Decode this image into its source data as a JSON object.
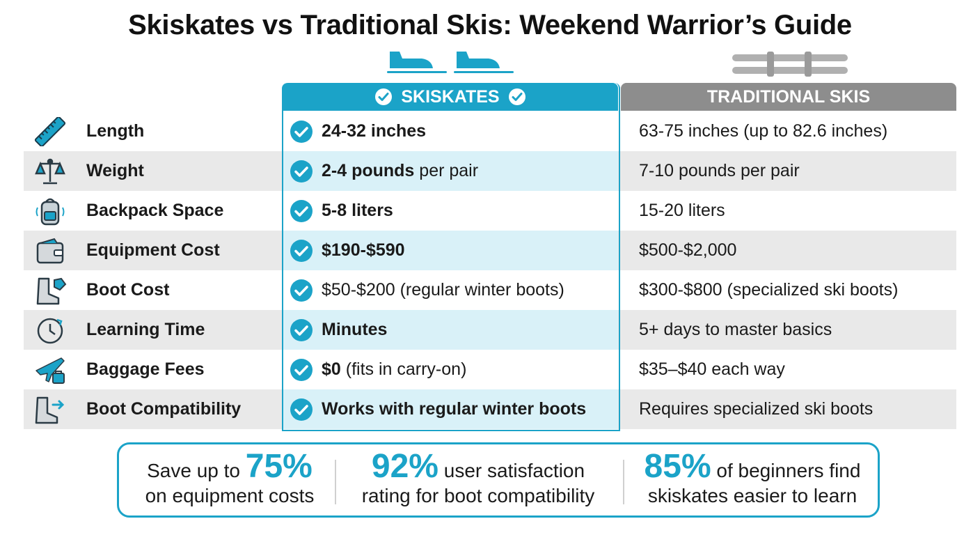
{
  "title": "Skiskates vs Traditional Skis: Weekend Warrior’s Guide",
  "accent_color": "#1ba3c8",
  "columns": {
    "skiskates": "SKISKATES",
    "traditional": "TRADITIONAL SKIS"
  },
  "rows": [
    {
      "icon": "ruler-icon",
      "label": "Length",
      "skiskates_bold": "24-32 inches",
      "skiskates_rest": "",
      "traditional": "63-75 inches (up to 82.6 inches)"
    },
    {
      "icon": "scale-icon",
      "label": "Weight",
      "skiskates_bold": "2-4 pounds",
      "skiskates_rest": " per pair",
      "traditional": "7-10 pounds per pair"
    },
    {
      "icon": "backpack-icon",
      "label": "Backpack Space",
      "skiskates_bold": "5-8 liters",
      "skiskates_rest": "",
      "traditional": "15-20 liters"
    },
    {
      "icon": "wallet-icon",
      "label": "Equipment Cost",
      "skiskates_bold": "$190-$590",
      "skiskates_rest": "",
      "traditional": "$500-$2,000"
    },
    {
      "icon": "boot-tag-icon",
      "label": "Boot Cost",
      "skiskates_bold": "",
      "skiskates_rest": "$50-$200 (regular winter boots)",
      "traditional": "$300-$800 (specialized ski boots)"
    },
    {
      "icon": "clock-icon",
      "label": "Learning Time",
      "skiskates_bold": "Minutes",
      "skiskates_rest": "",
      "traditional": "5+ days to master basics"
    },
    {
      "icon": "plane-luggage-icon",
      "label": "Baggage Fees",
      "skiskates_bold": "$0",
      "skiskates_rest": " (fits in carry-on)",
      "traditional": "$35–$40 each way"
    },
    {
      "icon": "boot-arrow-icon",
      "label": "Boot Compatibility",
      "skiskates_bold": "Works with regular winter boots",
      "skiskates_rest": "",
      "traditional": "Requires specialized ski boots"
    }
  ],
  "stats": [
    {
      "prefix": "Save up to ",
      "big": "75%",
      "suffix": "",
      "line2": "on equipment costs"
    },
    {
      "prefix": "",
      "big": "92%",
      "suffix": " user satisfaction",
      "line2": "rating for boot compatibility"
    },
    {
      "prefix": "",
      "big": "85%",
      "suffix": " of beginners find",
      "line2": "skiskates easier to learn"
    }
  ]
}
